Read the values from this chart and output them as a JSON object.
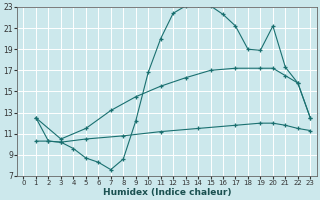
{
  "xlabel": "Humidex (Indice chaleur)",
  "bg_color": "#cce8ec",
  "grid_color": "#ffffff",
  "line_color": "#1a7070",
  "xlim": [
    -0.5,
    23.5
  ],
  "ylim": [
    7,
    23
  ],
  "xticks": [
    0,
    1,
    2,
    3,
    4,
    5,
    6,
    7,
    8,
    9,
    10,
    11,
    12,
    13,
    14,
    15,
    16,
    17,
    18,
    19,
    20,
    21,
    22,
    23
  ],
  "yticks": [
    7,
    9,
    11,
    13,
    15,
    17,
    19,
    21,
    23
  ],
  "line1_x": [
    1,
    2,
    3,
    4,
    5,
    6,
    7,
    8,
    9,
    10,
    11,
    12,
    13,
    14,
    15,
    16,
    17,
    18,
    19,
    20,
    21,
    22,
    23
  ],
  "line1_y": [
    12.5,
    10.3,
    10.2,
    9.6,
    8.7,
    8.3,
    7.6,
    8.6,
    12.2,
    16.8,
    20.0,
    22.4,
    23.1,
    23.2,
    23.1,
    22.3,
    21.2,
    19.0,
    18.9,
    21.2,
    17.3,
    15.8,
    12.5
  ],
  "line2_x": [
    1,
    3,
    5,
    7,
    9,
    11,
    13,
    15,
    17,
    19,
    20,
    21,
    22,
    23
  ],
  "line2_y": [
    12.5,
    10.5,
    11.5,
    13.2,
    14.5,
    15.5,
    16.3,
    17.0,
    17.2,
    17.2,
    17.2,
    16.5,
    15.8,
    12.5
  ],
  "line3_x": [
    1,
    2,
    3,
    5,
    8,
    11,
    14,
    17,
    19,
    20,
    21,
    22,
    23
  ],
  "line3_y": [
    10.3,
    10.3,
    10.2,
    10.5,
    10.8,
    11.2,
    11.5,
    11.8,
    12.0,
    12.0,
    11.8,
    11.5,
    11.3
  ]
}
